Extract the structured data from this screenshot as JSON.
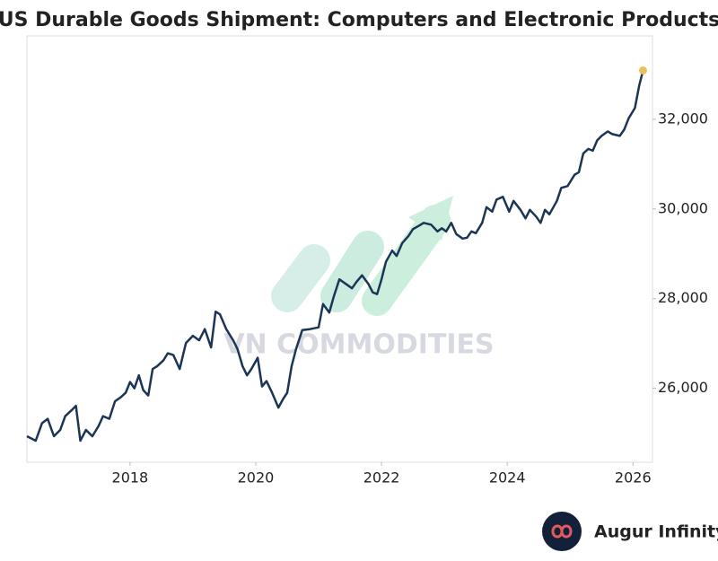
{
  "chart_data": {
    "type": "line",
    "title": "US Durable Goods Shipment: Computers and Electronic Products",
    "watermark": "VN COMMODITIES",
    "brand": "Augur Infinity",
    "color": "#1c3557",
    "end_marker_color": "#e8c15a",
    "x": [
      2016.36,
      2016.5,
      2016.6,
      2016.69,
      2016.79,
      2016.89,
      2016.97,
      2017.07,
      2017.14,
      2017.21,
      2017.3,
      2017.4,
      2017.5,
      2017.57,
      2017.67,
      2017.76,
      2017.86,
      2017.93,
      2018,
      2018.07,
      2018.14,
      2018.21,
      2018.29,
      2018.36,
      2018.43,
      2018.53,
      2018.6,
      2018.69,
      2018.79,
      2018.89,
      2019,
      2019.1,
      2019.19,
      2019.29,
      2019.36,
      2019.43,
      2019.53,
      2019.64,
      2019.71,
      2019.79,
      2019.86,
      2019.93,
      2020.03,
      2020.1,
      2020.17,
      2020.26,
      2020.36,
      2020.43,
      2020.5,
      2020.57,
      2020.64,
      2020.74,
      2020.86,
      2021,
      2021.07,
      2021.17,
      2021.24,
      2021.33,
      2021.43,
      2021.53,
      2021.6,
      2021.69,
      2021.79,
      2021.86,
      2021.93,
      2022,
      2022.07,
      2022.17,
      2022.24,
      2022.33,
      2022.43,
      2022.5,
      2022.6,
      2022.67,
      2022.79,
      2022.89,
      2022.96,
      2023.03,
      2023.11,
      2023.19,
      2023.29,
      2023.36,
      2023.43,
      2023.5,
      2023.6,
      2023.67,
      2023.76,
      2023.83,
      2023.93,
      2024.03,
      2024.1,
      2024.21,
      2024.29,
      2024.36,
      2024.46,
      2024.53,
      2024.6,
      2024.67,
      2024.79,
      2024.86,
      2024.96,
      2025.07,
      2025.14,
      2025.21,
      2025.29,
      2025.36,
      2025.43,
      2025.5,
      2025.6,
      2025.67,
      2025.79,
      2025.86,
      2025.93,
      2026.03,
      2026.1,
      2026.16
    ],
    "values": [
      24930,
      24830,
      25220,
      25320,
      24930,
      25070,
      25380,
      25510,
      25610,
      24830,
      25070,
      24930,
      25160,
      25380,
      25320,
      25710,
      25810,
      25900,
      26140,
      26000,
      26290,
      25960,
      25840,
      26430,
      26490,
      26620,
      26780,
      26740,
      26430,
      27010,
      27170,
      27070,
      27320,
      26910,
      27710,
      27650,
      27320,
      27070,
      26870,
      26490,
      26290,
      26430,
      26680,
      26040,
      26160,
      25900,
      25570,
      25750,
      25900,
      26490,
      26870,
      27300,
      27320,
      27360,
      27880,
      27690,
      28040,
      28430,
      28330,
      28230,
      28370,
      28520,
      28330,
      28140,
      28100,
      28430,
      28820,
      29070,
      28950,
      29240,
      29400,
      29550,
      29630,
      29690,
      29650,
      29500,
      29570,
      29500,
      29690,
      29440,
      29340,
      29360,
      29500,
      29460,
      29690,
      30040,
      29940,
      30210,
      30270,
      29940,
      30180,
      29980,
      29790,
      29980,
      29830,
      29690,
      29980,
      29880,
      30180,
      30470,
      30510,
      30760,
      30820,
      31240,
      31340,
      31300,
      31530,
      31630,
      31730,
      31670,
      31630,
      31770,
      32020,
      32250,
      32760,
      33090
    ],
    "xlim": [
      2016.36,
      2026.31
    ],
    "xticks": [
      2018,
      2020,
      2022,
      2024,
      2026
    ],
    "ylim": [
      24350,
      33860
    ],
    "yticks": [
      {
        "value": 26000,
        "label": "26,000"
      },
      {
        "value": 28000,
        "label": "28,000"
      },
      {
        "value": 30000,
        "label": "30,000"
      },
      {
        "value": 32000,
        "label": "32,000"
      }
    ],
    "grid": false
  }
}
